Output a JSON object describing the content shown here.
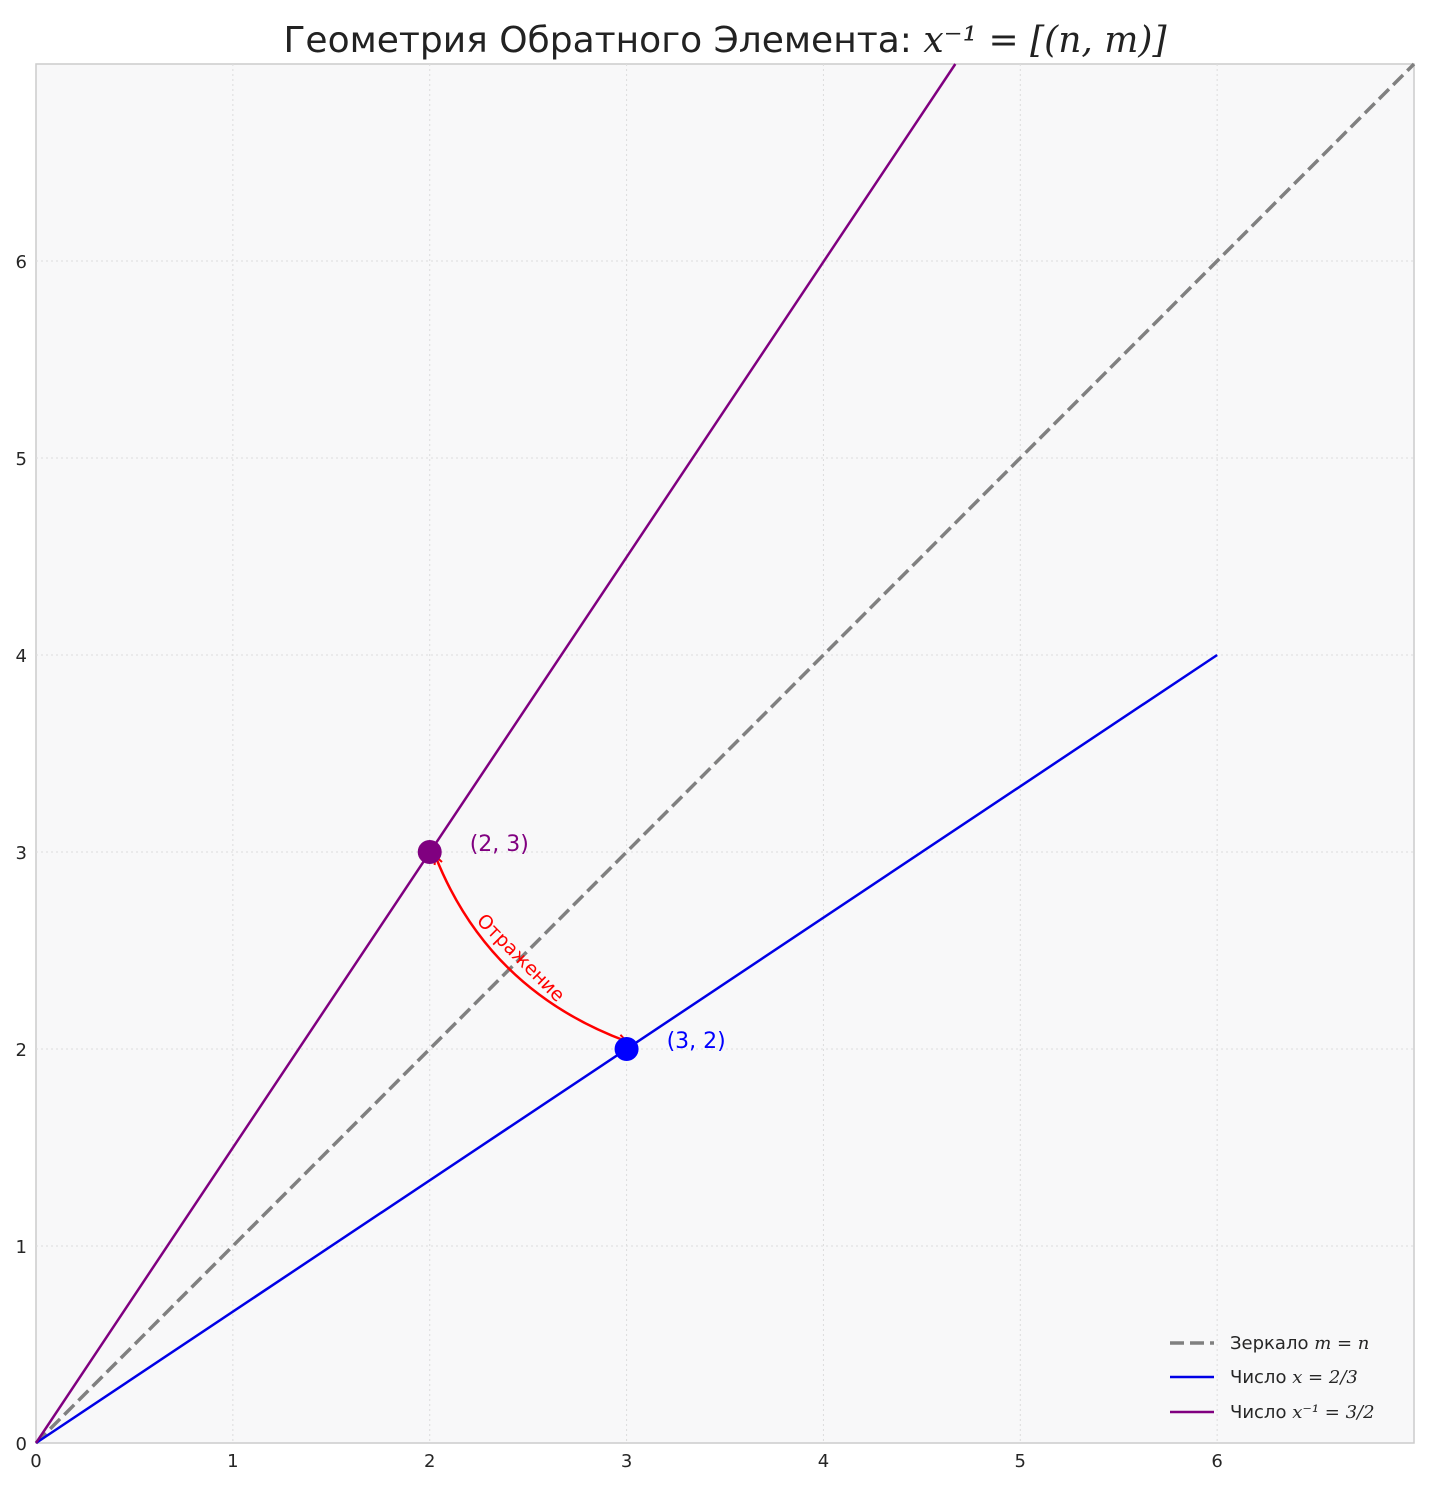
{
  "chart_data": {
    "type": "line",
    "title": {
      "text": "Геометрия Обратного Элемента: ",
      "math": "x⁻¹ = [(n, m)]"
    },
    "xlim": [
      0,
      7
    ],
    "ylim": [
      0,
      7
    ],
    "x_ticks": [
      0,
      1,
      2,
      3,
      4,
      5,
      6
    ],
    "y_ticks": [
      0,
      1,
      2,
      3,
      4,
      5,
      6
    ],
    "grid": true,
    "legend_position": "bottom-right",
    "series": [
      {
        "legend_text": "Зеркало ",
        "legend_math": "m = n",
        "color": "#808080",
        "style": "dashed",
        "points": [
          [
            0,
            0
          ],
          [
            7,
            7
          ]
        ]
      },
      {
        "legend_text": "Число ",
        "legend_math": "x = 2/3",
        "color": "#0000e6",
        "style": "solid",
        "points": [
          [
            0,
            0
          ],
          [
            6,
            4
          ]
        ]
      },
      {
        "legend_text": "Число ",
        "legend_math": "x⁻¹ = 3/2",
        "color": "#800080",
        "style": "solid",
        "points": [
          [
            0,
            0
          ],
          [
            4.67,
            7
          ]
        ]
      }
    ],
    "points": [
      {
        "x": 3,
        "y": 2,
        "label": "(3, 2)",
        "color": "#0000ff"
      },
      {
        "x": 2,
        "y": 3,
        "label": "(2, 3)",
        "color": "#800080"
      }
    ],
    "annotation": {
      "text": "Отражение",
      "from": [
        3,
        2
      ],
      "to": [
        2,
        3
      ],
      "color": "#ff0000"
    }
  }
}
